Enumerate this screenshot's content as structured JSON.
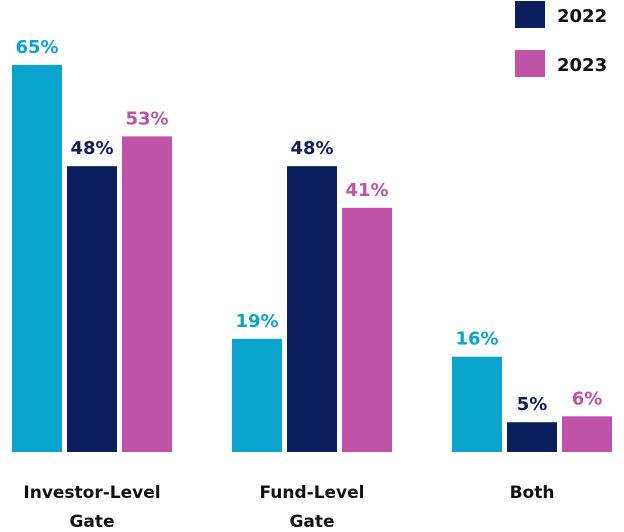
{
  "chart_data": {
    "type": "bar",
    "categories": [
      "Investor-Level Gate",
      "Fund-Level Gate",
      "Both"
    ],
    "series": [
      {
        "color": "#0aa5cf",
        "values": [
          65,
          19,
          16
        ],
        "value_labels": [
          "65%",
          "19%",
          "16%"
        ]
      },
      {
        "name": "2022",
        "color": "#0b1f5e",
        "values": [
          48,
          48,
          5
        ],
        "value_labels": [
          "48%",
          "48%",
          "5%"
        ]
      },
      {
        "name": "2023",
        "color": "#c052a8",
        "values": [
          53,
          41,
          6
        ],
        "value_labels": [
          "53%",
          "41%",
          "6%"
        ]
      }
    ],
    "legend": "top-right"
  }
}
